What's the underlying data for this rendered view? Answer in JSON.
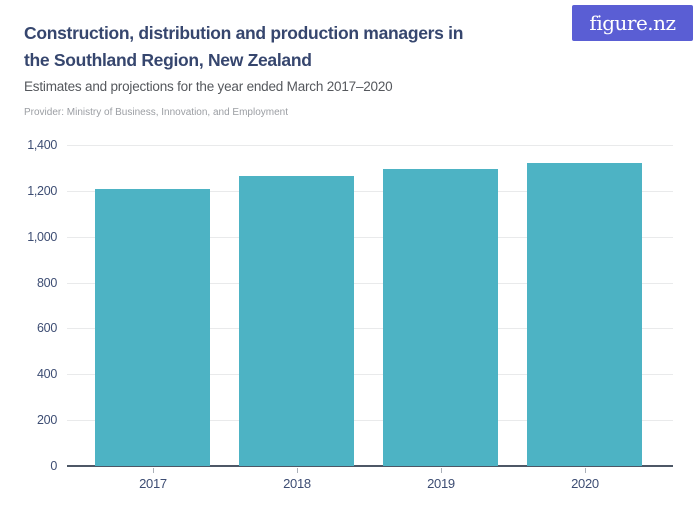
{
  "header": {
    "logo_text": "figure.nz",
    "title_line1": "Construction, distribution and production managers in",
    "title_line2": "the Southland Region, New Zealand",
    "subtitle": "Estimates and projections for the year ended March 2017–2020",
    "provider": "Provider: Ministry of Business, Innovation, and Employment"
  },
  "colors": {
    "bar": "#4db3c4",
    "logo_bg": "#5a5ed4",
    "logo_text": "#ffffff",
    "title": "#36466e",
    "subtitle": "#55585d",
    "provider": "#9b9ea3",
    "axis_label": "#3d4d73",
    "gridline": "#e9eaeb",
    "baseline": "#4d5766",
    "tick": "#aab0b8",
    "background": "#ffffff"
  },
  "chart_data": {
    "type": "bar",
    "title": "Construction, distribution and production managers in the Southland Region, New Zealand",
    "subtitle": "Estimates and projections for the year ended March 2017–2020",
    "provider": "Ministry of Business, Innovation, and Employment",
    "categories": [
      "2017",
      "2018",
      "2019",
      "2020"
    ],
    "values": [
      1210,
      1265,
      1295,
      1320
    ],
    "xlabel": "",
    "ylabel": "",
    "ylim": [
      0,
      1400
    ],
    "ytick_step": 200,
    "ytick_labels": [
      "0",
      "200",
      "400",
      "600",
      "800",
      "1,000",
      "1,200",
      "1,400"
    ],
    "grid": true,
    "legend": false,
    "bar_color": "#4db3c4"
  }
}
